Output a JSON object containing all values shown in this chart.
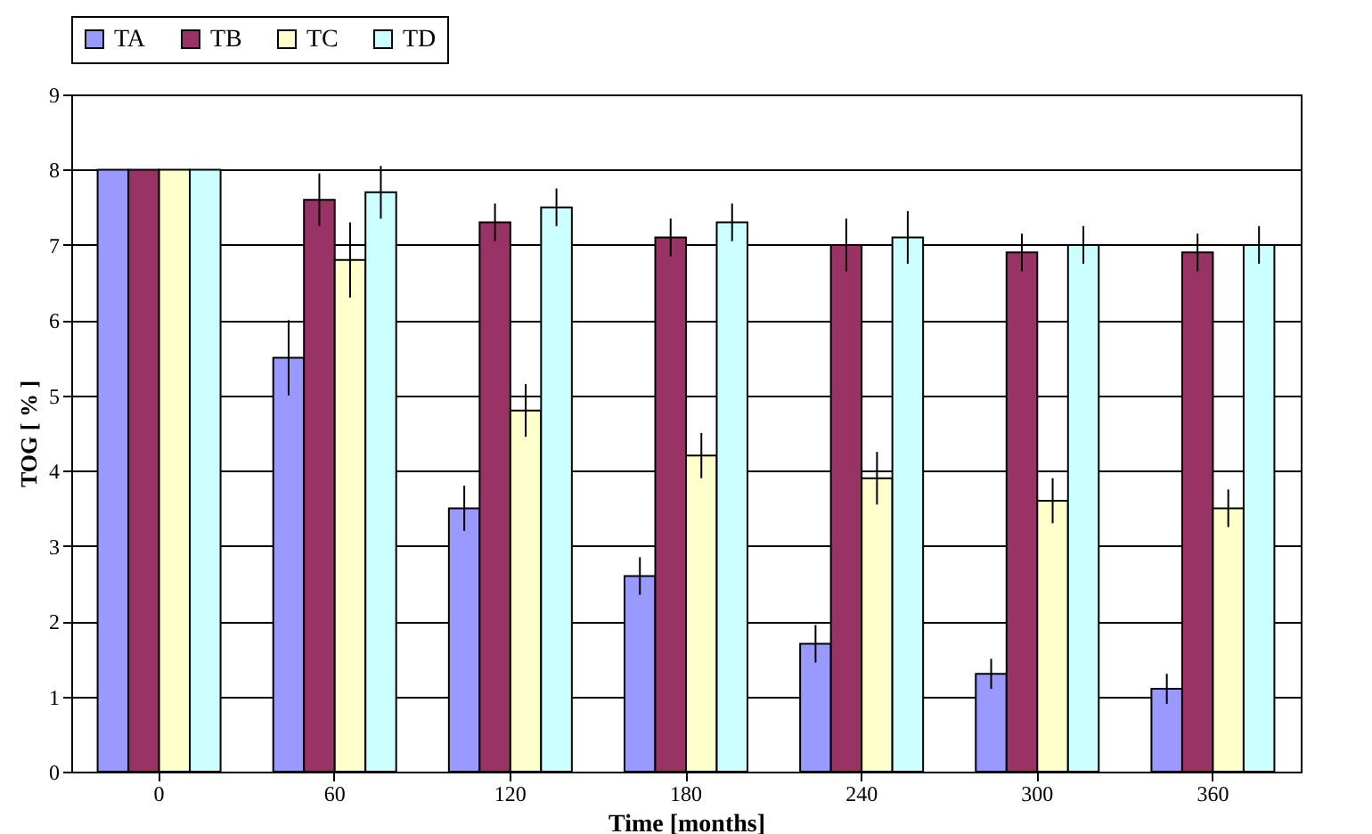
{
  "chart_data": {
    "type": "bar",
    "xlabel": "Time [months]",
    "ylabel": "TOG [ % ]",
    "categories": [
      "0",
      "60",
      "120",
      "180",
      "240",
      "300",
      "360"
    ],
    "series": [
      {
        "name": "TA",
        "color": "#9999ff",
        "values": [
          8,
          5.5,
          3.5,
          2.6,
          1.7,
          1.3,
          1.1
        ],
        "errors": [
          null,
          0.5,
          0.3,
          0.25,
          0.25,
          0.2,
          0.2
        ]
      },
      {
        "name": "TB",
        "color": "#993366",
        "values": [
          8,
          7.6,
          7.3,
          7.1,
          7.0,
          6.9,
          6.9
        ],
        "errors": [
          null,
          0.35,
          0.25,
          0.25,
          0.35,
          0.25,
          0.25
        ]
      },
      {
        "name": "TC",
        "color": "#ffffcc",
        "values": [
          8,
          6.8,
          4.8,
          4.2,
          3.9,
          3.6,
          3.5
        ],
        "errors": [
          null,
          0.5,
          0.35,
          0.3,
          0.35,
          0.3,
          0.25
        ]
      },
      {
        "name": "TD",
        "color": "#ccffff",
        "values": [
          8,
          7.7,
          7.5,
          7.3,
          7.1,
          7.0,
          7.0
        ],
        "errors": [
          null,
          0.35,
          0.25,
          0.25,
          0.35,
          0.25,
          0.25
        ]
      }
    ],
    "ylim": [
      0,
      9
    ],
    "yticks": [
      0,
      1,
      2,
      3,
      4,
      5,
      6,
      7,
      8,
      9
    ],
    "grid": "y",
    "legend": "top"
  }
}
